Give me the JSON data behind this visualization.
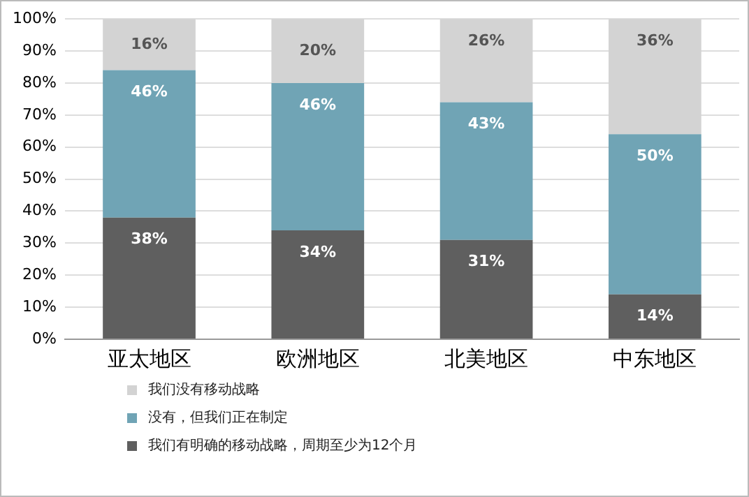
{
  "chart_data": {
    "type": "bar",
    "stacked": true,
    "categories": [
      "亚太地区",
      "欧洲地区",
      "北美地区",
      "中东地区"
    ],
    "series": [
      {
        "name": "我们有明确的移动战略，周期至少为12个月",
        "color": "#5f5f5f",
        "values": [
          38,
          34,
          31,
          14
        ],
        "value_labels": [
          "38%",
          "34%",
          "31%",
          "14%"
        ]
      },
      {
        "name": "没有，但我们正在制定",
        "color": "#70a4b5",
        "values": [
          46,
          46,
          43,
          50
        ],
        "value_labels": [
          "46%",
          "46%",
          "43%",
          "50%"
        ]
      },
      {
        "name": "我们没有移动战略",
        "color": "#d3d3d3",
        "values": [
          16,
          20,
          26,
          36
        ],
        "value_labels": [
          "16%",
          "20%",
          "26%",
          "36%"
        ]
      }
    ],
    "ylim": [
      0,
      100
    ],
    "yticks": [
      {
        "value": 0,
        "label": "0%"
      },
      {
        "value": 10,
        "label": "10%"
      },
      {
        "value": 20,
        "label": "20%"
      },
      {
        "value": 30,
        "label": "30%"
      },
      {
        "value": 40,
        "label": "40%"
      },
      {
        "value": 50,
        "label": "50%"
      },
      {
        "value": 60,
        "label": "60%"
      },
      {
        "value": 70,
        "label": "70%"
      },
      {
        "value": 80,
        "label": "80%"
      },
      {
        "value": 90,
        "label": "90%"
      },
      {
        "value": 100,
        "label": "100%"
      }
    ],
    "grid": "y",
    "legend": "bottom left"
  }
}
